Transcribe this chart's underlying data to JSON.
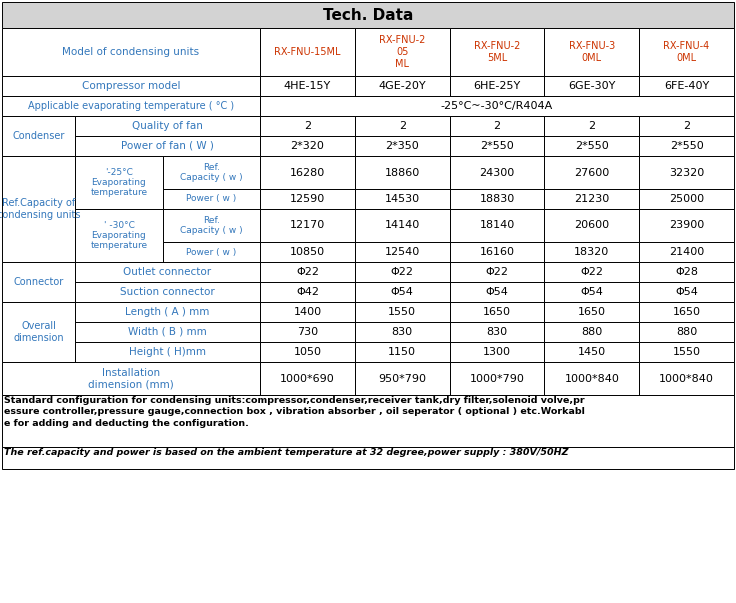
{
  "title": "Tech. Data",
  "title_bg": "#d3d3d3",
  "border_color": "#000000",
  "header_color": "#cc3300",
  "label_color": "#3377bb",
  "data_color": "#000000",
  "model_headers": [
    "RX-FNU-15ML",
    "RX-FNU-2\n05\nML",
    "RX-FNU-2\n5ML",
    "RX-FNU-3\n0ML",
    "RX-FNU-4\n0ML"
  ],
  "compressor_model": [
    "4HE-15Y",
    "4GE-20Y",
    "6HE-25Y",
    "6GE-30Y",
    "6FE-40Y"
  ],
  "applicable_temp": "-25°C~-30°C/R404A",
  "condenser_quality": [
    "2",
    "2",
    "2",
    "2",
    "2"
  ],
  "condenser_power": [
    "2*320",
    "2*350",
    "2*550",
    "2*550",
    "2*550"
  ],
  "ref_cap_25_ref": [
    "16280",
    "18860",
    "24300",
    "27600",
    "32320"
  ],
  "ref_cap_25_pow": [
    "12590",
    "14530",
    "18830",
    "21230",
    "25000"
  ],
  "ref_cap_30_ref": [
    "12170",
    "14140",
    "18140",
    "20600",
    "23900"
  ],
  "ref_cap_30_pow": [
    "10850",
    "12540",
    "16160",
    "18320",
    "21400"
  ],
  "outlet_connector": [
    "Φ22",
    "Φ22",
    "Φ22",
    "Φ22",
    "Φ28"
  ],
  "suction_connector": [
    "Φ42",
    "Φ54",
    "Φ54",
    "Φ54",
    "Φ54"
  ],
  "length": [
    "1400",
    "1550",
    "1650",
    "1650",
    "1650"
  ],
  "width": [
    "730",
    "830",
    "830",
    "880",
    "880"
  ],
  "height": [
    "1050",
    "1150",
    "1300",
    "1450",
    "1550"
  ],
  "installation": [
    "1000*690",
    "950*790",
    "1000*790",
    "1000*840",
    "1000*840"
  ],
  "footer1": "Standard configuration for condensing units:compressor,condenser,receiver tank,dry filter,solenoid volve,pr\nessure controller,pressure gauge,connection box , vibration absorber , oil seperator ( optional ) etc.Workabl\ne for adding and deducting the configuration.",
  "footer2": "The ref.capacity and power is based on the ambient temperature at 32 degree,power supply : 380V/50HZ"
}
